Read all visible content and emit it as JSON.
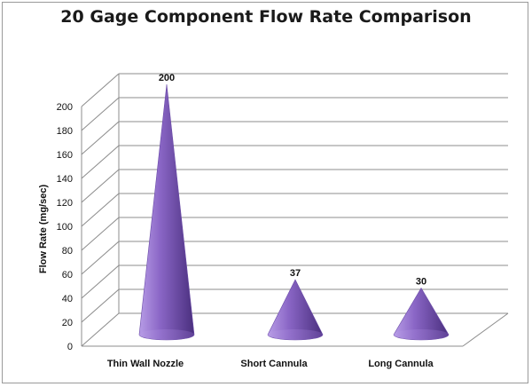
{
  "chart_data": {
    "type": "bar",
    "title": "20 Gage Component Flow Rate Comparison",
    "xlabel": "",
    "ylabel": "Flow Rate (mg/sec)",
    "categories": [
      "Thin Wall Nozzle",
      "Short Cannula",
      "Long Cannula"
    ],
    "values": [
      200,
      37,
      30
    ],
    "data_labels": [
      "200",
      "37",
      "30"
    ],
    "yticks": [
      "0",
      "20",
      "40",
      "60",
      "80",
      "100",
      "120",
      "140",
      "160",
      "180",
      "200"
    ],
    "ylim": [
      0,
      200
    ],
    "grid": true,
    "legend": "none",
    "mark_shape": "3d-cone",
    "colors": {
      "cone_base": "#8a66c6",
      "cone_dark": "#4a2f7e",
      "cone_light": "#b79ce6",
      "grid": "#8c8c8c"
    }
  }
}
